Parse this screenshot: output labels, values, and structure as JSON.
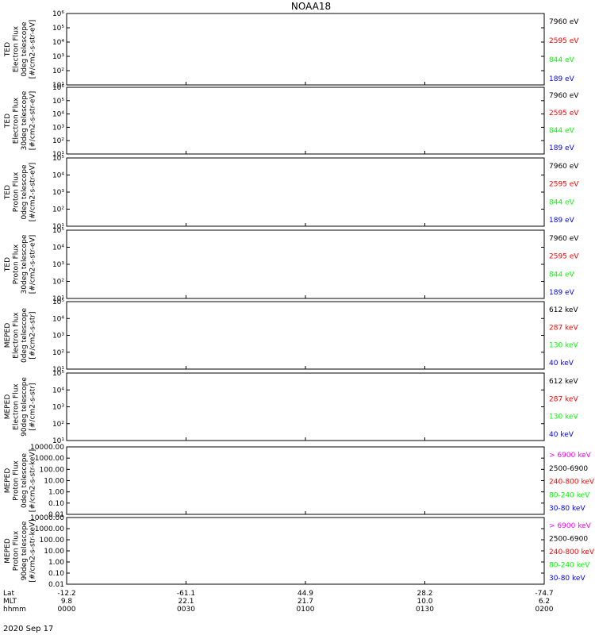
{
  "title": "NOAA18",
  "date_label": "2020 Sep 17",
  "colors": {
    "axis": "#000000",
    "blue": "#0000ff",
    "red": "#ff0000",
    "green": "#00ff00",
    "black": "#000000",
    "magenta": "#ff00ff"
  },
  "x_axis": {
    "row_labels": [
      "Lat",
      "MLT",
      "hhmm"
    ],
    "ticks": [
      {
        "lat": "-12.2",
        "mlt": "9.8",
        "hhmm": "0000"
      },
      {
        "lat": "-61.1",
        "mlt": "22.1",
        "hhmm": "0030"
      },
      {
        "lat": "44.9",
        "mlt": "21.7",
        "hhmm": "0100"
      },
      {
        "lat": "28.2",
        "mlt": "10.0",
        "hhmm": "0130"
      },
      {
        "lat": "-74.7",
        "mlt": "6.2",
        "hhmm": "0200"
      }
    ]
  },
  "chart_data": [
    {
      "type": "line",
      "ylabel_lines": [
        "TED",
        "Electron Flux",
        "0deg telescope",
        "[#/cm2-s-str-eV]"
      ],
      "ytick_labels": [
        "10^1",
        "10^2",
        "10^3",
        "10^4",
        "10^5",
        "10^6"
      ],
      "ylim": [
        10,
        1000000
      ],
      "log": true,
      "series": [
        {
          "name": "7960 eV",
          "color": "black"
        },
        {
          "name": "2595 eV",
          "color": "red"
        },
        {
          "name": "844 eV",
          "color": "green"
        },
        {
          "name": "189 eV",
          "color": "blue"
        }
      ]
    },
    {
      "type": "line",
      "ylabel_lines": [
        "TED",
        "Electron Flux",
        "30deg telescope",
        "[#/cm2-s-str-eV]"
      ],
      "ytick_labels": [
        "10^1",
        "10^2",
        "10^3",
        "10^4",
        "10^5",
        "10^6"
      ],
      "ylim": [
        10,
        1000000
      ],
      "log": true,
      "series": [
        {
          "name": "7960 eV",
          "color": "black"
        },
        {
          "name": "2595 eV",
          "color": "red"
        },
        {
          "name": "844 eV",
          "color": "green"
        },
        {
          "name": "189 eV",
          "color": "blue"
        }
      ]
    },
    {
      "type": "line",
      "ylabel_lines": [
        "TED",
        "Proton Flux",
        "0deg telescope",
        "[#/cm2-s-str-eV]"
      ],
      "ytick_labels": [
        "10^1",
        "10^2",
        "10^3",
        "10^4",
        "10^5"
      ],
      "ylim": [
        10,
        100000
      ],
      "log": true,
      "series": [
        {
          "name": "7960 eV",
          "color": "black"
        },
        {
          "name": "2595 eV",
          "color": "red"
        },
        {
          "name": "844 eV",
          "color": "green"
        },
        {
          "name": "189 eV",
          "color": "blue"
        }
      ]
    },
    {
      "type": "line",
      "ylabel_lines": [
        "TED",
        "Proton Flux",
        "30deg telescope",
        "[#/cm2-s-str-eV]"
      ],
      "ytick_labels": [
        "10^1",
        "10^2",
        "10^3",
        "10^4",
        "10^5"
      ],
      "ylim": [
        10,
        100000
      ],
      "log": true,
      "series": [
        {
          "name": "7960 eV",
          "color": "black"
        },
        {
          "name": "2595 eV",
          "color": "red"
        },
        {
          "name": "844 eV",
          "color": "green"
        },
        {
          "name": "189 eV",
          "color": "blue"
        }
      ]
    },
    {
      "type": "line",
      "ylabel_lines": [
        "MEPED",
        "Electron Flux",
        "0deg telescope",
        "[#/cm2-s-str]"
      ],
      "ytick_labels": [
        "10^1",
        "10^2",
        "10^3",
        "10^4",
        "10^5"
      ],
      "ylim": [
        10,
        100000
      ],
      "log": true,
      "series": [
        {
          "name": "612 keV",
          "color": "black"
        },
        {
          "name": "287 keV",
          "color": "red"
        },
        {
          "name": "130 keV",
          "color": "green"
        },
        {
          "name": "40 keV",
          "color": "blue"
        }
      ]
    },
    {
      "type": "line",
      "ylabel_lines": [
        "MEPED",
        "Electron Flux",
        "90deg telescope",
        "[#/cm2-s-str]"
      ],
      "ytick_labels": [
        "10^1",
        "10^2",
        "10^3",
        "10^4",
        "10^5"
      ],
      "ylim": [
        10,
        100000
      ],
      "log": true,
      "series": [
        {
          "name": "612 keV",
          "color": "black"
        },
        {
          "name": "287 keV",
          "color": "red"
        },
        {
          "name": "130 keV",
          "color": "green"
        },
        {
          "name": "40 keV",
          "color": "blue"
        }
      ]
    },
    {
      "type": "line",
      "ylabel_lines": [
        "MEPED",
        "Proton Flux",
        "0deg telescope",
        "[#/cm2-s-str-keV]"
      ],
      "ytick_labels": [
        "0.01",
        "0.10",
        "1.00",
        "10.00",
        "100.00",
        "1000.00",
        "10000.00"
      ],
      "ylim": [
        0.01,
        10000
      ],
      "log": true,
      "series": [
        {
          "name": "> 6900 keV",
          "color": "magenta"
        },
        {
          "name": "2500-6900",
          "color": "black"
        },
        {
          "name": "240-800 keV",
          "color": "red"
        },
        {
          "name": "80-240 keV",
          "color": "green"
        },
        {
          "name": "30-80 keV",
          "color": "blue"
        }
      ]
    },
    {
      "type": "line",
      "ylabel_lines": [
        "MEPED",
        "Proton Flux",
        "90deg telescope",
        "[#/cm2-s-str-keV]"
      ],
      "ytick_labels": [
        "0.01",
        "0.10",
        "1.00",
        "10.00",
        "100.00",
        "1000.00",
        "10000.00"
      ],
      "ylim": [
        0.01,
        10000
      ],
      "log": true,
      "series": [
        {
          "name": "> 6900 keV",
          "color": "magenta"
        },
        {
          "name": "2500-6900",
          "color": "black"
        },
        {
          "name": "240-800 keV",
          "color": "red"
        },
        {
          "name": "80-240 keV",
          "color": "green"
        },
        {
          "name": "30-80 keV",
          "color": "blue"
        }
      ]
    }
  ]
}
